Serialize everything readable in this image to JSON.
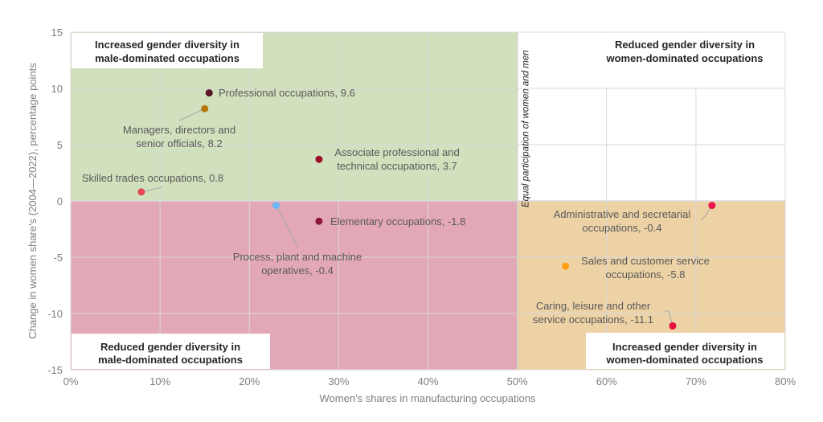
{
  "chart_data": {
    "type": "scatter",
    "title": "",
    "xlabel": "Women's shares in  manufacturing occupations",
    "ylabel": "Change in women share's (2004—2022), percentage points",
    "xlim": [
      0,
      80
    ],
    "ylim": [
      -15,
      15
    ],
    "x_ticks": [
      "0%",
      "10%",
      "20%",
      "30%",
      "40%",
      "50%",
      "60%",
      "70%",
      "80%"
    ],
    "y_ticks": [
      "15",
      "10",
      "5",
      "0",
      "-5",
      "-10",
      "-15"
    ],
    "grid": true,
    "reference_line": {
      "x": 50,
      "label": "Equal participation of women and men"
    },
    "quadrants": [
      {
        "name": "top-left",
        "label_lines": [
          "Increased gender diversity in",
          "male-dominated occupations"
        ],
        "color": "#d1e0bd"
      },
      {
        "name": "top-right",
        "label_lines": [
          "Reduced gender diversity in",
          "women-dominated occupations"
        ],
        "color": "#ffffff"
      },
      {
        "name": "bottom-left",
        "label_lines": [
          "Reduced gender diversity in",
          "male-dominated occupations"
        ],
        "color": "#e3a8b5"
      },
      {
        "name": "bottom-right",
        "label_lines": [
          "Increased gender diversity in",
          "women-dominated occupations"
        ],
        "color": "#edd2a6"
      }
    ],
    "points": [
      {
        "name": "Professional occupations",
        "x": 15.5,
        "y": 9.6,
        "color": "#5b1428",
        "label_lines": [
          "Professional occupations, 9.6"
        ]
      },
      {
        "name": "Managers, directors and senior officials",
        "x": 15.0,
        "y": 8.2,
        "color": "#b8780a",
        "label_lines": [
          "Managers, directors and",
          "senior officials, 8.2"
        ]
      },
      {
        "name": "Associate professional and technical occupations",
        "x": 27.8,
        "y": 3.7,
        "color": "#9b0e2a",
        "label_lines": [
          "Associate professional and",
          "technical occupations, 3.7"
        ]
      },
      {
        "name": "Skilled trades occupations",
        "x": 7.9,
        "y": 0.8,
        "color": "#e34a55",
        "label_lines": [
          "Skilled trades occupations, 0.8"
        ]
      },
      {
        "name": "Process, plant and machine operatives",
        "x": 23.0,
        "y": -0.4,
        "color": "#6cb8f5",
        "label_lines": [
          "Process, plant and machine",
          "operatives, -0.4"
        ]
      },
      {
        "name": "Elementary occupations",
        "x": 27.8,
        "y": -1.8,
        "color": "#8a1a3a",
        "label_lines": [
          "Elementary occupations, -1.8"
        ]
      },
      {
        "name": "Administrative and secretarial occupations",
        "x": 71.8,
        "y": -0.4,
        "color": "#f0144f",
        "label_lines": [
          "Administrative and secretarial",
          "occupations, -0.4"
        ]
      },
      {
        "name": "Sales and customer service occupations",
        "x": 55.4,
        "y": -5.8,
        "color": "#ffa010",
        "label_lines": [
          "Sales and customer service",
          "occupations, -5.8"
        ]
      },
      {
        "name": "Caring, leisure and other service occupations",
        "x": 67.4,
        "y": -11.1,
        "color": "#e5103f",
        "label_lines": [
          "Caring, leisure and other",
          "service occupations, -11.1"
        ]
      }
    ]
  }
}
